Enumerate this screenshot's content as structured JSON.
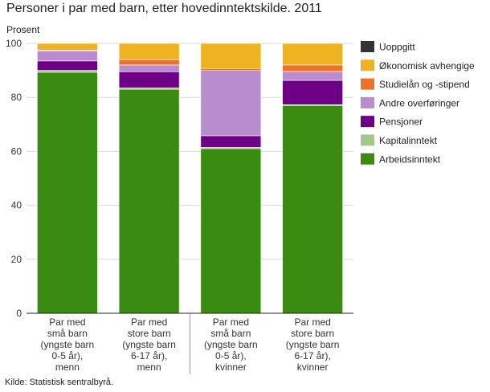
{
  "chart_data": {
    "type": "bar",
    "stacked": true,
    "title": "Personer i par med barn, etter hovedinntektskilde. 2011",
    "ylabel": "Prosent",
    "ylim": [
      0,
      100
    ],
    "yticks": [
      0,
      20,
      40,
      60,
      80,
      100
    ],
    "grid": true,
    "legend_position": "right",
    "categories": [
      [
        "Par med",
        "små barn",
        "(yngste barn",
        "0-5 år),",
        "menn"
      ],
      [
        "Par med",
        "store barn",
        "(yngste barn",
        "6-17 år),",
        "menn"
      ],
      [
        "Par med",
        "små barn",
        "(yngste barn",
        "0-5 år),",
        "kvinner"
      ],
      [
        "Par med",
        "store barn",
        "(yngste barn",
        "6-17 år),",
        "kvinner"
      ]
    ],
    "series": [
      {
        "name": "Arbeidsinntekt",
        "color": "#3a8b12",
        "values": [
          89.3,
          83.0,
          61.0,
          77.0
        ]
      },
      {
        "name": "Kapitalinntekt",
        "color": "#a3c98a",
        "values": [
          0.7,
          0.5,
          0.5,
          0.3
        ]
      },
      {
        "name": "Pensjoner",
        "color": "#6e0086",
        "values": [
          3.5,
          6.0,
          4.3,
          9.0
        ]
      },
      {
        "name": "Andre overføringer",
        "color": "#b98ccd",
        "values": [
          3.7,
          2.5,
          24.2,
          3.3
        ]
      },
      {
        "name": "Studielån og -stipend",
        "color": "#ec7228",
        "values": [
          0.3,
          2.0,
          0.7,
          2.4
        ]
      },
      {
        "name": "Økonomisk avhengige",
        "color": "#efb322",
        "values": [
          2.5,
          6.0,
          9.3,
          8.0
        ]
      },
      {
        "name": "Uoppgitt",
        "color": "#333333",
        "values": [
          0.0,
          0.0,
          0.0,
          0.0
        ]
      }
    ]
  },
  "source_text": "Kilde: Statistisk sentralbyrå."
}
